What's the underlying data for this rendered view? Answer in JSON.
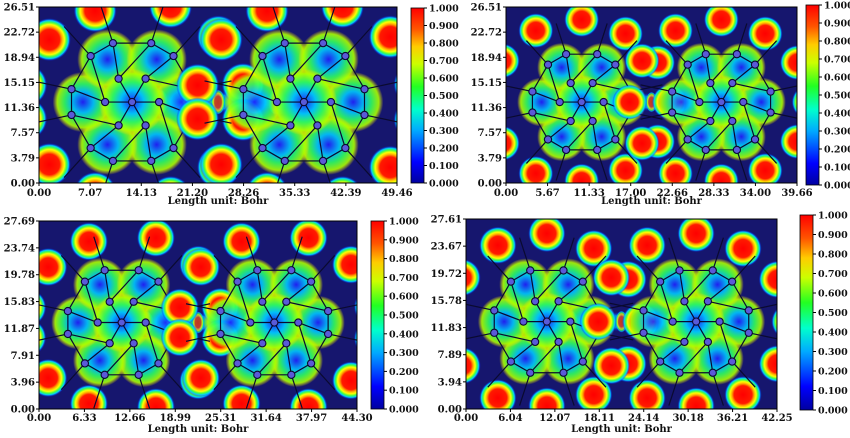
{
  "chart_data": [
    {
      "type": "heatmap",
      "xlabel": "Length unit: Bohr",
      "x_ticks": [
        "0.00",
        "7.07",
        "14.13",
        "21.20",
        "28.26",
        "35.33",
        "42.39",
        "49.46"
      ],
      "y_ticks": [
        "0.00",
        "3.79",
        "7.57",
        "11.36",
        "15.15",
        "18.94",
        "22.72",
        "26.51"
      ],
      "xlim": [
        0,
        49.46
      ],
      "ylim": [
        0,
        26.51
      ],
      "colorbar_ticks": [
        "0.000",
        "0.100",
        "0.200",
        "0.300",
        "0.400",
        "0.500",
        "0.600",
        "0.700",
        "0.800",
        "0.900",
        "1.000"
      ],
      "colorbar_range": [
        0,
        1
      ],
      "colors": {
        "background": "#16166e",
        "low": "#0000ff",
        "mid": "#00ff66",
        "high": "#ff0000"
      }
    },
    {
      "type": "heatmap",
      "xlabel": "Length unit: Bohr",
      "x_ticks": [
        "0.00",
        "5.67",
        "11.33",
        "17.00",
        "22.66",
        "28.33",
        "34.00",
        "39.66"
      ],
      "y_ticks": [
        "0.00",
        "3.79",
        "7.57",
        "11.36",
        "15.15",
        "18.94",
        "22.72",
        "26.51"
      ],
      "xlim": [
        0,
        39.66
      ],
      "ylim": [
        0,
        26.51
      ],
      "colorbar_ticks": [
        "0.000",
        "0.100",
        "0.200",
        "0.300",
        "0.400",
        "0.500",
        "0.600",
        "0.700",
        "0.800",
        "0.900",
        "1.000"
      ],
      "colorbar_range": [
        0,
        1
      ],
      "colors": {
        "background": "#16166e",
        "low": "#0000ff",
        "mid": "#00ff66",
        "high": "#ff0000"
      }
    },
    {
      "type": "heatmap",
      "xlabel": "Length unit: Bohr",
      "x_ticks": [
        "0.00",
        "6.33",
        "12.66",
        "18.99",
        "25.31",
        "31.64",
        "37.97",
        "44.30"
      ],
      "y_ticks": [
        "0.00",
        "3.96",
        "7.91",
        "11.87",
        "15.83",
        "19.78",
        "23.74",
        "27.69"
      ],
      "xlim": [
        0,
        44.3
      ],
      "ylim": [
        0,
        27.69
      ],
      "colorbar_ticks": [
        "0.000",
        "0.100",
        "0.200",
        "0.300",
        "0.400",
        "0.500",
        "0.600",
        "0.700",
        "0.800",
        "0.900",
        "1.000"
      ],
      "colorbar_range": [
        0,
        1
      ],
      "colors": {
        "background": "#16166e",
        "low": "#0000ff",
        "mid": "#00ff66",
        "high": "#ff0000"
      }
    },
    {
      "type": "heatmap",
      "xlabel": "Length unit: Bohr",
      "x_ticks": [
        "0.00",
        "6.04",
        "12.07",
        "18.11",
        "24.14",
        "30.18",
        "36.21",
        "42.25"
      ],
      "y_ticks": [
        "0.00",
        "3.94",
        "7.89",
        "11.83",
        "15.78",
        "19.72",
        "23.67",
        "27.61"
      ],
      "xlim": [
        0,
        42.25
      ],
      "ylim": [
        0,
        27.61
      ],
      "colorbar_ticks": [
        "0.000",
        "0.100",
        "0.200",
        "0.300",
        "0.400",
        "0.500",
        "0.600",
        "0.700",
        "0.800",
        "0.900",
        "1.000"
      ],
      "colorbar_range": [
        0,
        1
      ],
      "colors": {
        "background": "#16166e",
        "low": "#0000ff",
        "mid": "#00ff66",
        "high": "#ff0000"
      }
    }
  ]
}
